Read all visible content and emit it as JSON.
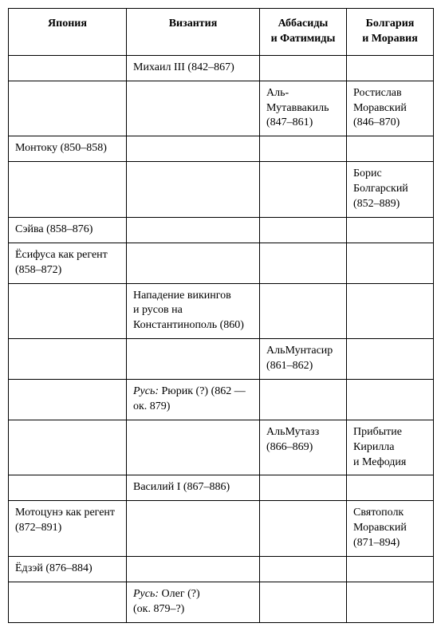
{
  "table": {
    "columns": [
      "Япония",
      "Византия",
      "Аббасиды и Фатимиды",
      "Болгария и Моравия"
    ],
    "rows": [
      [
        "",
        "Михаил III (842–867)",
        "",
        ""
      ],
      [
        "",
        "",
        "Аль-Мутаввакиль (847–861)",
        "Ростислав Моравский (846–870)"
      ],
      [
        "Монтоку (850–858)",
        "",
        "",
        ""
      ],
      [
        "",
        "",
        "",
        "Борис Болгарский (852–889)"
      ],
      [
        "Сэйва (858–876)",
        "",
        "",
        ""
      ],
      [
        "Ёсифуса как регент (858–872)",
        "",
        "",
        ""
      ],
      [
        "",
        "Нападение викингов и русов на Константинополь (860)",
        "",
        ""
      ],
      [
        "",
        "",
        "АльМунтасир (861–862)",
        ""
      ],
      [
        "",
        "",
        "",
        ""
      ],
      [
        "",
        "",
        "АльМутазз (866–869)",
        "Прибытие Кирилла и Мефодия"
      ],
      [
        "",
        "Василий I (867–886)",
        "",
        ""
      ],
      [
        "Мотоцунэ как регент (872–891)",
        "",
        "",
        "Святополк Моравский (871–894)"
      ],
      [
        "Ёдзэй (876–884)",
        "",
        "",
        ""
      ],
      [
        "",
        "",
        "",
        ""
      ]
    ],
    "special": {
      "8_1": {
        "italic_prefix": "Русь:",
        "rest": " Рюрик (?) (862 — ок. 879)"
      },
      "13_1": {
        "italic_prefix": "Русь:",
        "rest": " Олег (?) (ок. 879–?)"
      }
    },
    "border_color": "#000000",
    "background_color": "#ffffff",
    "font_size": 14,
    "header_font_weight": "bold"
  }
}
